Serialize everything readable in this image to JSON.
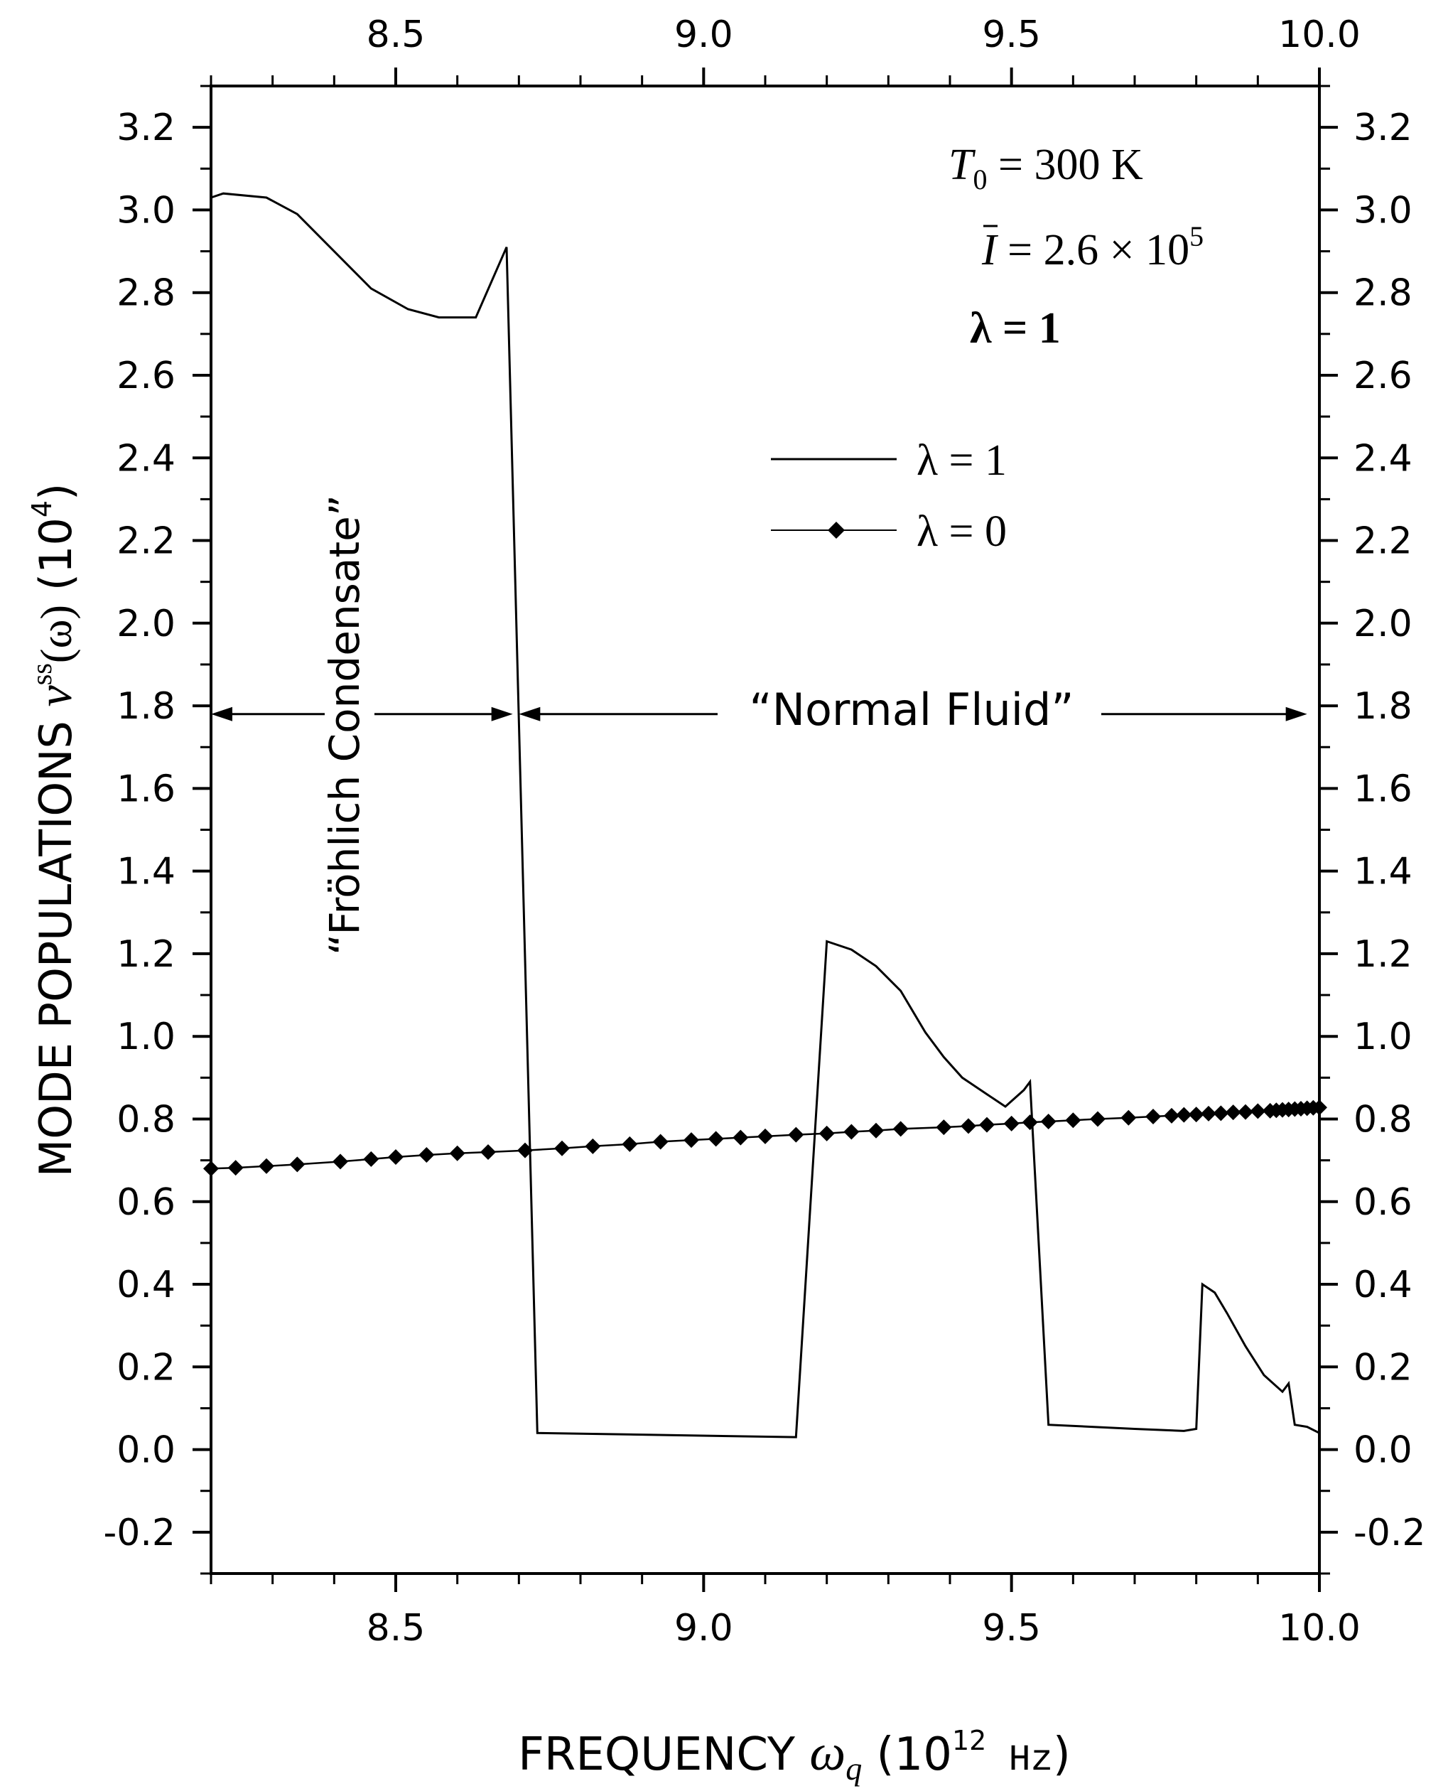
{
  "chart_data": {
    "type": "line",
    "xlabel": {
      "prefix": "FREQUENCY ",
      "symbol": "ω",
      "subscript": "q",
      "paren_open": " (10",
      "superscript": "12",
      "unit": " Hz",
      "paren_close": ")"
    },
    "ylabel": {
      "prefix": "MODE POPULATIONS ",
      "symbol": "ν",
      "superscript": "ss",
      "argument": "(ω)",
      "scale_open": "  (10",
      "scale_sup": "4",
      "scale_close": ")"
    },
    "xlim": [
      8.2,
      10.0
    ],
    "ylim": [
      -0.3,
      3.3
    ],
    "x_ticks": [
      {
        "value": 8.5,
        "label": "8.5"
      },
      {
        "value": 9.0,
        "label": "9.0"
      },
      {
        "value": 9.5,
        "label": "9.5"
      },
      {
        "value": 10.0,
        "label": "10.0"
      }
    ],
    "y_ticks": [
      {
        "value": -0.2,
        "label": "-0.2"
      },
      {
        "value": 0.0,
        "label": "0.0"
      },
      {
        "value": 0.2,
        "label": "0.2"
      },
      {
        "value": 0.4,
        "label": "0.4"
      },
      {
        "value": 0.6,
        "label": "0.6"
      },
      {
        "value": 0.8,
        "label": "0.8"
      },
      {
        "value": 1.0,
        "label": "1.0"
      },
      {
        "value": 1.2,
        "label": "1.2"
      },
      {
        "value": 1.4,
        "label": "1.4"
      },
      {
        "value": 1.6,
        "label": "1.6"
      },
      {
        "value": 1.8,
        "label": "1.8"
      },
      {
        "value": 2.0,
        "label": "2.0"
      },
      {
        "value": 2.2,
        "label": "2.2"
      },
      {
        "value": 2.4,
        "label": "2.4"
      },
      {
        "value": 2.6,
        "label": "2.6"
      },
      {
        "value": 2.8,
        "label": "2.8"
      },
      {
        "value": 3.0,
        "label": "3.0"
      },
      {
        "value": 3.2,
        "label": "3.2"
      }
    ],
    "x_minor_step": 0.1,
    "y_minor_step": 0.1,
    "grid": false,
    "legend_position": "upper-middle",
    "series": [
      {
        "name": "λ = 1",
        "marker": "none",
        "x": [
          8.2,
          8.22,
          8.29,
          8.34,
          8.4,
          8.46,
          8.52,
          8.57,
          8.63,
          8.68,
          8.73,
          9.15,
          9.2,
          9.24,
          9.28,
          9.32,
          9.36,
          9.39,
          9.42,
          9.46,
          9.49,
          9.52,
          9.53,
          9.56,
          9.7,
          9.78,
          9.8,
          9.81,
          9.83,
          9.85,
          9.88,
          9.91,
          9.94,
          9.95,
          9.96,
          9.98,
          10.0
        ],
        "values": [
          3.03,
          3.04,
          3.03,
          2.99,
          2.9,
          2.81,
          2.76,
          2.74,
          2.74,
          2.91,
          0.04,
          0.03,
          1.23,
          1.21,
          1.17,
          1.11,
          1.01,
          0.95,
          0.9,
          0.86,
          0.83,
          0.87,
          0.89,
          0.06,
          0.05,
          0.045,
          0.05,
          0.4,
          0.38,
          0.33,
          0.25,
          0.18,
          0.14,
          0.16,
          0.06,
          0.055,
          0.04
        ]
      },
      {
        "name": "λ = 0",
        "marker": "diamond",
        "x": [
          8.2,
          8.24,
          8.29,
          8.34,
          8.41,
          8.46,
          8.5,
          8.55,
          8.6,
          8.65,
          8.71,
          8.77,
          8.82,
          8.88,
          8.93,
          8.98,
          9.02,
          9.06,
          9.1,
          9.15,
          9.2,
          9.24,
          9.28,
          9.32,
          9.39,
          9.43,
          9.46,
          9.5,
          9.53,
          9.56,
          9.6,
          9.64,
          9.69,
          9.73,
          9.76,
          9.78,
          9.8,
          9.82,
          9.84,
          9.86,
          9.88,
          9.9,
          9.92,
          9.93,
          9.94,
          9.95,
          9.96,
          9.97,
          9.98,
          9.99,
          10.0
        ],
        "values": [
          0.68,
          0.682,
          0.686,
          0.69,
          0.697,
          0.703,
          0.708,
          0.713,
          0.717,
          0.72,
          0.724,
          0.729,
          0.734,
          0.739,
          0.745,
          0.749,
          0.752,
          0.755,
          0.758,
          0.762,
          0.765,
          0.769,
          0.772,
          0.776,
          0.78,
          0.783,
          0.786,
          0.789,
          0.792,
          0.794,
          0.797,
          0.8,
          0.803,
          0.806,
          0.808,
          0.81,
          0.811,
          0.813,
          0.814,
          0.816,
          0.817,
          0.819,
          0.82,
          0.821,
          0.822,
          0.823,
          0.824,
          0.825,
          0.826,
          0.827,
          0.828
        ]
      }
    ],
    "annotations": {
      "params": {
        "T_symbol": "T",
        "T_sub": "0",
        "T_value": " = 300 K",
        "I_symbol": "I",
        "I_value": " = 2.6 × 10",
        "I_sup": "5",
        "lambda_text": "λ = 1"
      },
      "condensate_label": "“Fröhlich Condensate”",
      "normal_fluid_label": "“Normal Fluid”",
      "arrow_y": 1.78,
      "condensate_range": [
        8.2,
        8.69
      ],
      "normal_fluid_range": [
        8.7,
        9.98
      ]
    }
  }
}
